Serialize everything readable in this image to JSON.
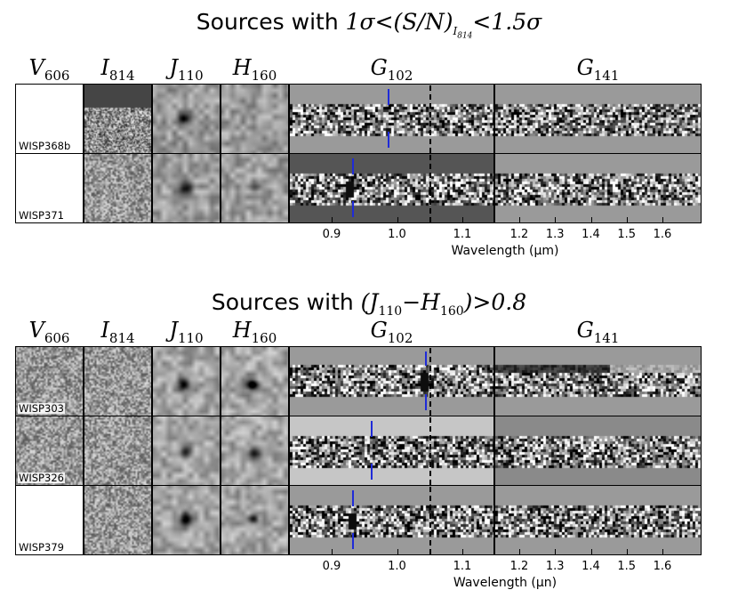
{
  "figure": {
    "top": {
      "title_prefix": "Sources with ",
      "title_math": "1σ < (S/N)",
      "title_sub": "I814",
      "title_suffix": " < 1.5σ",
      "sources": [
        "WISP368b",
        "WISP371"
      ]
    },
    "bottom": {
      "title_prefix": "Sources with ",
      "title_math": "(J110 − H160) > 0.8",
      "sources": [
        "WISP303",
        "WISP326",
        "WISP379"
      ]
    },
    "columns": {
      "v606": {
        "main": "V",
        "sub": "606"
      },
      "i814": {
        "main": "I",
        "sub": "814"
      },
      "j110": {
        "main": "J",
        "sub": "110"
      },
      "h160": {
        "main": "H",
        "sub": "160"
      },
      "g102": {
        "main": "G",
        "sub": "102"
      },
      "g141": {
        "main": "G",
        "sub": "141"
      }
    },
    "axis": {
      "ticks": [
        "0.9",
        "1.0",
        "1.1",
        "1.2",
        "1.3",
        "1.4",
        "1.5",
        "1.6"
      ],
      "tick_values": [
        0.9,
        1.0,
        1.1,
        1.2,
        1.3,
        1.4,
        1.5,
        1.6
      ],
      "range": [
        0.8,
        1.7
      ],
      "label": "Wavelength (μm)",
      "label_bottom": "Wavelength (μn)"
    },
    "colors": {
      "emission_marker": "#1f2bd8",
      "border": "#000000"
    }
  }
}
